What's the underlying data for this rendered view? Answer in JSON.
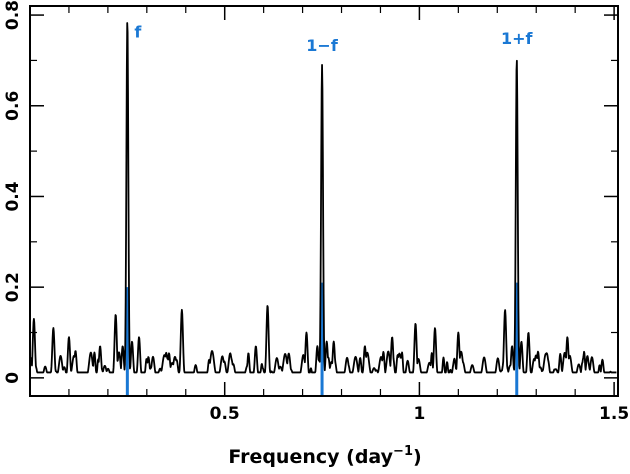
{
  "chart_data": {
    "type": "line",
    "title": "",
    "xlabel": "Frequency (day",
    "xlabel_sup": "−1",
    "xlabel_close": ")",
    "ylabel": "",
    "xlim": [
      0.0,
      1.51
    ],
    "ylim": [
      -0.04,
      0.82
    ],
    "grid": false,
    "x_ticks": [
      {
        "value": 0.5,
        "label": "0.5"
      },
      {
        "value": 1.0,
        "label": "1"
      },
      {
        "value": 1.5,
        "label": "1.5"
      }
    ],
    "x_minor_ticks": [
      0.1,
      0.2,
      0.3,
      0.4,
      0.6,
      0.7,
      0.8,
      0.9,
      1.1,
      1.2,
      1.3,
      1.4
    ],
    "y_ticks": [
      {
        "value": 0.0,
        "label": "0"
      },
      {
        "value": 0.2,
        "label": "0.2"
      },
      {
        "value": 0.4,
        "label": "0.4"
      },
      {
        "value": 0.6,
        "label": "0.6"
      },
      {
        "value": 0.8,
        "label": "0.8"
      }
    ],
    "y_minor_ticks": [
      0.1,
      0.3,
      0.5,
      0.7
    ],
    "series": [
      {
        "color": "#000000",
        "peaks": [
          {
            "x": 0.25,
            "y": 0.79,
            "label": "f"
          },
          {
            "x": 0.75,
            "y": 0.69,
            "label": "1−f"
          },
          {
            "x": 1.25,
            "y": 0.705,
            "label": "1+f"
          }
        ],
        "noise_features": [
          {
            "x": 0.01,
            "y": 0.13
          },
          {
            "x": 0.06,
            "y": 0.11
          },
          {
            "x": 0.1,
            "y": 0.09
          },
          {
            "x": 0.18,
            "y": 0.07
          },
          {
            "x": 0.22,
            "y": 0.14
          },
          {
            "x": 0.28,
            "y": 0.09
          },
          {
            "x": 0.39,
            "y": 0.15
          },
          {
            "x": 0.46,
            "y": 0.04
          },
          {
            "x": 0.58,
            "y": 0.07
          },
          {
            "x": 0.61,
            "y": 0.16
          },
          {
            "x": 0.71,
            "y": 0.1
          },
          {
            "x": 0.78,
            "y": 0.08
          },
          {
            "x": 0.86,
            "y": 0.07
          },
          {
            "x": 0.93,
            "y": 0.09
          },
          {
            "x": 0.99,
            "y": 0.12
          },
          {
            "x": 1.04,
            "y": 0.11
          },
          {
            "x": 1.1,
            "y": 0.1
          },
          {
            "x": 1.22,
            "y": 0.15
          },
          {
            "x": 1.28,
            "y": 0.1
          },
          {
            "x": 1.38,
            "y": 0.09
          },
          {
            "x": 1.47,
            "y": 0.04
          }
        ]
      },
      {
        "color": "#1a78d4",
        "type": "stem",
        "points": [
          {
            "x": 0.25,
            "y": 0.2
          },
          {
            "x": 0.75,
            "y": 0.21
          },
          {
            "x": 1.25,
            "y": 0.21
          }
        ]
      }
    ],
    "colors": {
      "curve": "#000000",
      "accent": "#1a78d4"
    }
  }
}
